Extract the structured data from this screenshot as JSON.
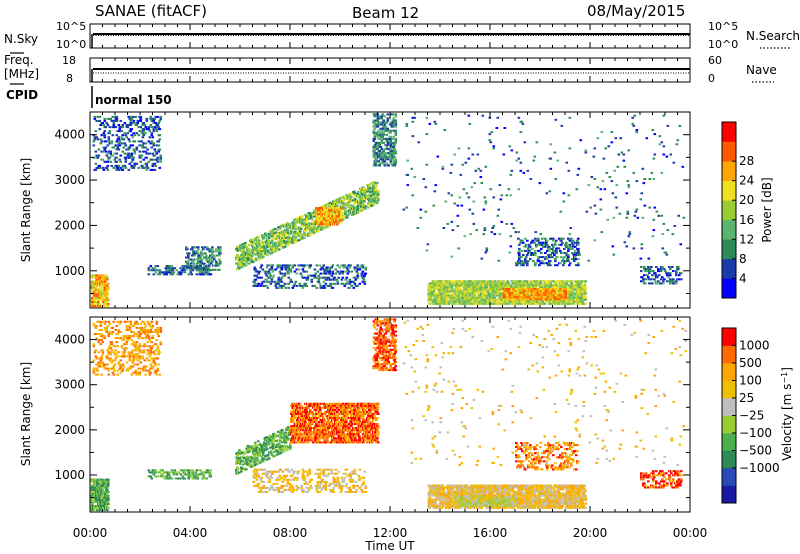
{
  "header": {
    "station": "SANAE (fitACF)",
    "beam": "Beam 12",
    "date": "08/May/2015"
  },
  "colors": {
    "axis": "#000000",
    "background": "#ffffff"
  },
  "chart_data": [
    {
      "type": "line",
      "panel": "noise",
      "left_label": "N.Sky",
      "right_label": "N.Search",
      "left_ticks": [
        "10^5",
        "10^0"
      ],
      "right_ticks": [
        "10^5",
        "10^0"
      ],
      "series": [
        {
          "name": "N.Sky",
          "style": "solid",
          "values": "approximately constant near 10^4 throughout the day"
        },
        {
          "name": "N.Search",
          "style": "dotted",
          "values": "approximately constant near 10^4 throughout the day"
        }
      ]
    },
    {
      "type": "line",
      "panel": "frequency",
      "left_label": [
        "Freq.",
        "[MHz]"
      ],
      "right_label": "Nave",
      "left_ticks": [
        "18",
        "8"
      ],
      "right_ticks": [
        "60",
        "0"
      ],
      "series": [
        {
          "name": "Freq.",
          "style": "solid",
          "constant": 12
        },
        {
          "name": "Nave",
          "style": "dotted",
          "constant": 22
        }
      ]
    },
    {
      "panel": "cpid",
      "label": "CPID",
      "annotation": "normal 150"
    },
    {
      "type": "heatmap",
      "panel": "power",
      "ylabel": "Slant Range [km]",
      "y_ticks": [
        "1000",
        "2000",
        "3000",
        "4000"
      ],
      "ylim": [
        180,
        4500
      ],
      "xlim": [
        0,
        24
      ],
      "colorbar": {
        "label": "Power [dB]",
        "ticks": [
          "4",
          "8",
          "12",
          "16",
          "20",
          "24",
          "28"
        ],
        "colors": [
          "#0000ff",
          "#1a3ca8",
          "#2e8b57",
          "#5ab46e",
          "#9acd32",
          "#f0e020",
          "#ffa500",
          "#ff5a00",
          "#ff0000"
        ]
      },
      "regions": [
        {
          "t0": 0.1,
          "t1": 2.8,
          "r0": 3200,
          "r1": 4400,
          "level": 1.2,
          "density": 0.22
        },
        {
          "t0": 0.0,
          "t1": 0.7,
          "r0": 200,
          "r1": 900,
          "level": 5.5,
          "density": 0.7
        },
        {
          "t0": 2.3,
          "t1": 4.8,
          "r0": 900,
          "r1": 1100,
          "level": 1.5,
          "density": 0.35
        },
        {
          "t0": 3.8,
          "t1": 5.2,
          "r0": 1000,
          "r1": 1500,
          "level": 2.0,
          "density": 0.35
        },
        {
          "t0": 5.8,
          "t1": 11.5,
          "r0": 1000,
          "r1": 2700,
          "level": 3.5,
          "density": 0.55,
          "slope": 260
        },
        {
          "t0": 9.0,
          "t1": 10.0,
          "r0": 2000,
          "r1": 2400,
          "level": 6.0,
          "density": 0.6
        },
        {
          "t0": 6.5,
          "t1": 11.0,
          "r0": 600,
          "r1": 1100,
          "level": 1.4,
          "density": 0.25
        },
        {
          "t0": 11.3,
          "t1": 12.2,
          "r0": 3300,
          "r1": 4450,
          "level": 2.0,
          "density": 0.45
        },
        {
          "t0": 13.5,
          "t1": 19.8,
          "r0": 250,
          "r1": 750,
          "level": 4.0,
          "density": 0.7
        },
        {
          "t0": 16.5,
          "t1": 19.0,
          "r0": 350,
          "r1": 600,
          "level": 6.0,
          "density": 0.7
        },
        {
          "t0": 17.0,
          "t1": 19.5,
          "r0": 1100,
          "r1": 1700,
          "level": 1.5,
          "density": 0.25
        },
        {
          "t0": 22.0,
          "t1": 23.6,
          "r0": 700,
          "r1": 1100,
          "level": 1.5,
          "density": 0.3
        },
        {
          "t0": 12.5,
          "t1": 23.8,
          "r0": 1200,
          "r1": 4400,
          "level": 1.5,
          "density": 0.015
        }
      ]
    },
    {
      "type": "heatmap",
      "panel": "velocity",
      "ylabel": "Slant Range [km]",
      "y_ticks": [
        "1000",
        "2000",
        "3000",
        "4000"
      ],
      "ylim": [
        180,
        4500
      ],
      "xlim": [
        0,
        24
      ],
      "colorbar": {
        "label": "Velocity [m s^-1]",
        "ticks": [
          "1000",
          "500",
          "100",
          "25",
          "−25",
          "−100",
          "−500",
          "−1000"
        ],
        "colors": [
          "#1a1aa0",
          "#2a4ab8",
          "#2e8b57",
          "#4caf50",
          "#9acd32",
          "#bfbfbf",
          "#f0c000",
          "#ffa500",
          "#ff6a00",
          "#ff0000"
        ]
      },
      "regions": [
        {
          "t0": 0.1,
          "t1": 2.8,
          "r0": 3200,
          "r1": 4400,
          "level": 7.0,
          "density": 0.22
        },
        {
          "t0": 0.0,
          "t1": 0.7,
          "r0": 200,
          "r1": 900,
          "level": 3.0,
          "density": 0.7
        },
        {
          "t0": 2.3,
          "t1": 4.8,
          "r0": 900,
          "r1": 1100,
          "level": 3.0,
          "density": 0.35
        },
        {
          "t0": 5.8,
          "t1": 8.0,
          "r0": 1000,
          "r1": 2100,
          "level": 3.0,
          "density": 0.5,
          "slope": 260
        },
        {
          "t0": 8.0,
          "t1": 11.5,
          "r0": 1700,
          "r1": 2600,
          "level": 8.0,
          "density": 0.6
        },
        {
          "t0": 6.5,
          "t1": 11.0,
          "r0": 600,
          "r1": 1100,
          "level": 6.0,
          "density": 0.25
        },
        {
          "t0": 11.3,
          "t1": 12.2,
          "r0": 3300,
          "r1": 4450,
          "level": 8.0,
          "density": 0.45
        },
        {
          "t0": 13.5,
          "t1": 19.8,
          "r0": 250,
          "r1": 750,
          "level": 6.0,
          "density": 0.7
        },
        {
          "t0": 14.5,
          "t1": 17.0,
          "r0": 300,
          "r1": 500,
          "level": 5.0,
          "density": 0.6
        },
        {
          "t0": 17.0,
          "t1": 19.5,
          "r0": 1100,
          "r1": 1700,
          "level": 7.5,
          "density": 0.25
        },
        {
          "t0": 22.0,
          "t1": 23.6,
          "r0": 700,
          "r1": 1100,
          "level": 8.5,
          "density": 0.3
        },
        {
          "t0": 12.5,
          "t1": 23.8,
          "r0": 1200,
          "r1": 4400,
          "level": 6.0,
          "density": 0.015
        }
      ]
    }
  ],
  "x_axis": {
    "ticks": [
      "00:00",
      "04:00",
      "08:00",
      "12:00",
      "16:00",
      "20:00",
      "00:00"
    ],
    "label": "Time UT"
  }
}
